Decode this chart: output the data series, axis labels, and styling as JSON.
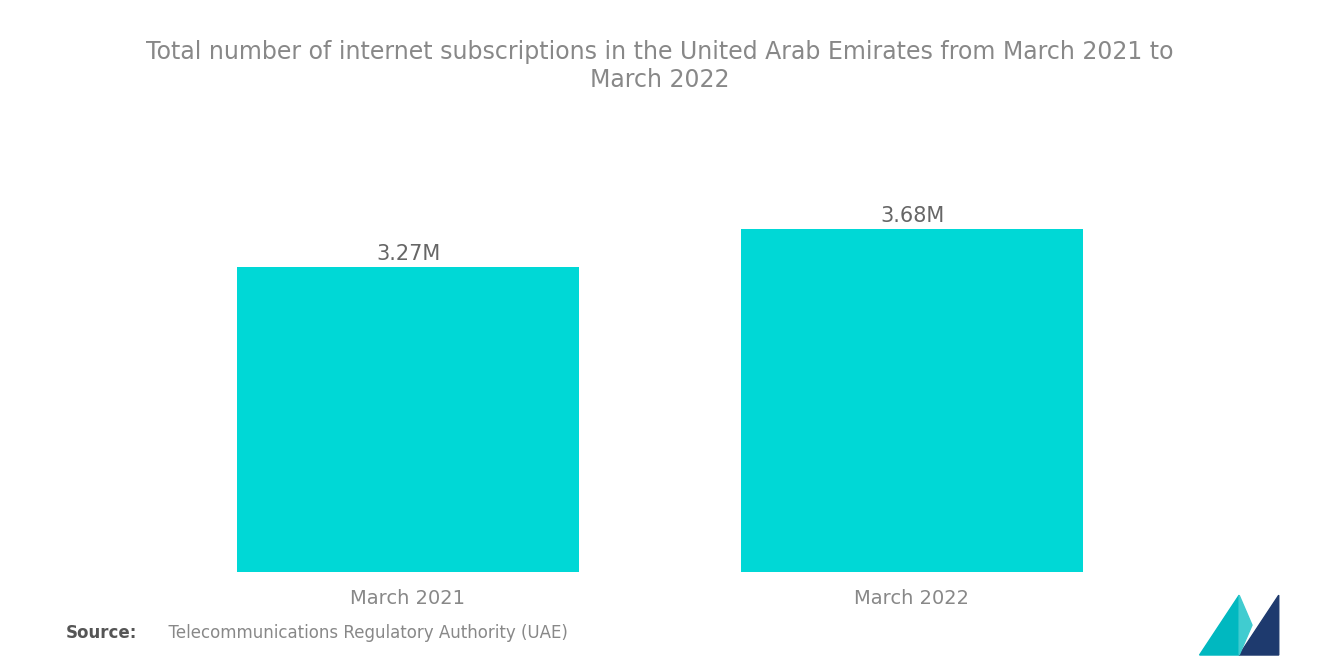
{
  "title": "Total number of internet subscriptions in the United Arab Emirates from March 2021 to\nMarch 2022",
  "categories": [
    "March 2021",
    "March 2022"
  ],
  "values": [
    3.27,
    3.68
  ],
  "labels": [
    "3.27M",
    "3.68M"
  ],
  "bar_color": "#00D8D6",
  "background_color": "#ffffff",
  "title_color": "#888888",
  "label_color": "#666666",
  "xlabel_color": "#888888",
  "source_bold": "Source:",
  "source_text": "  Telecommunications Regulatory Authority (UAE)",
  "ylim": [
    0,
    4.5
  ],
  "bar_width": 0.68,
  "title_fontsize": 17,
  "label_fontsize": 15,
  "xlabel_fontsize": 14,
  "source_fontsize": 12
}
